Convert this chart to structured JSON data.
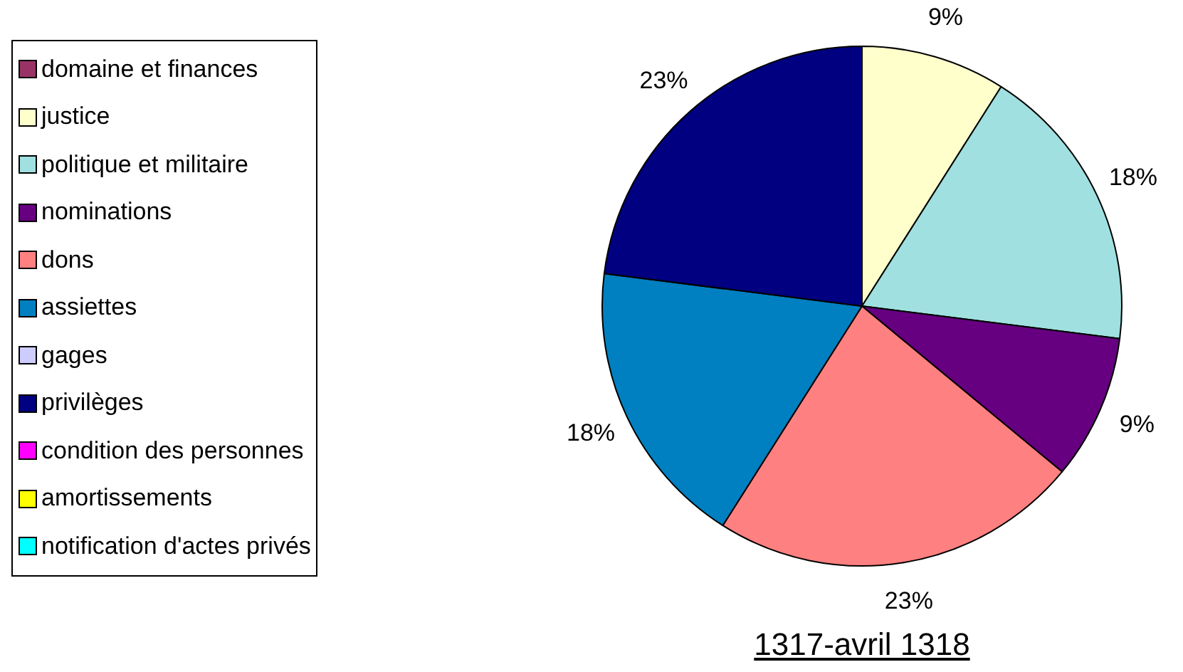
{
  "chart_data": {
    "type": "pie",
    "title": "1317-avril 1318",
    "categories": [
      "domaine et finances",
      "justice",
      "politique et militaire",
      "nominations",
      "dons",
      "assiettes",
      "gages",
      "privilèges",
      "condition des personnes",
      "amortissements",
      "notification d'actes privés"
    ],
    "values": [
      0,
      9,
      18,
      9,
      23,
      18,
      0,
      23,
      0,
      0,
      0
    ],
    "value_labels": [
      null,
      "9%",
      "18%",
      "9%",
      "23%",
      "18%",
      null,
      "23%",
      null,
      null,
      null
    ],
    "colors": [
      "#993366",
      "#ffffcc",
      "#a0e0e0",
      "#660080",
      "#ff8080",
      "#0080c0",
      "#ccccff",
      "#000080",
      "#ff00ff",
      "#ffff00",
      "#00ffff"
    ],
    "legend": "left"
  }
}
